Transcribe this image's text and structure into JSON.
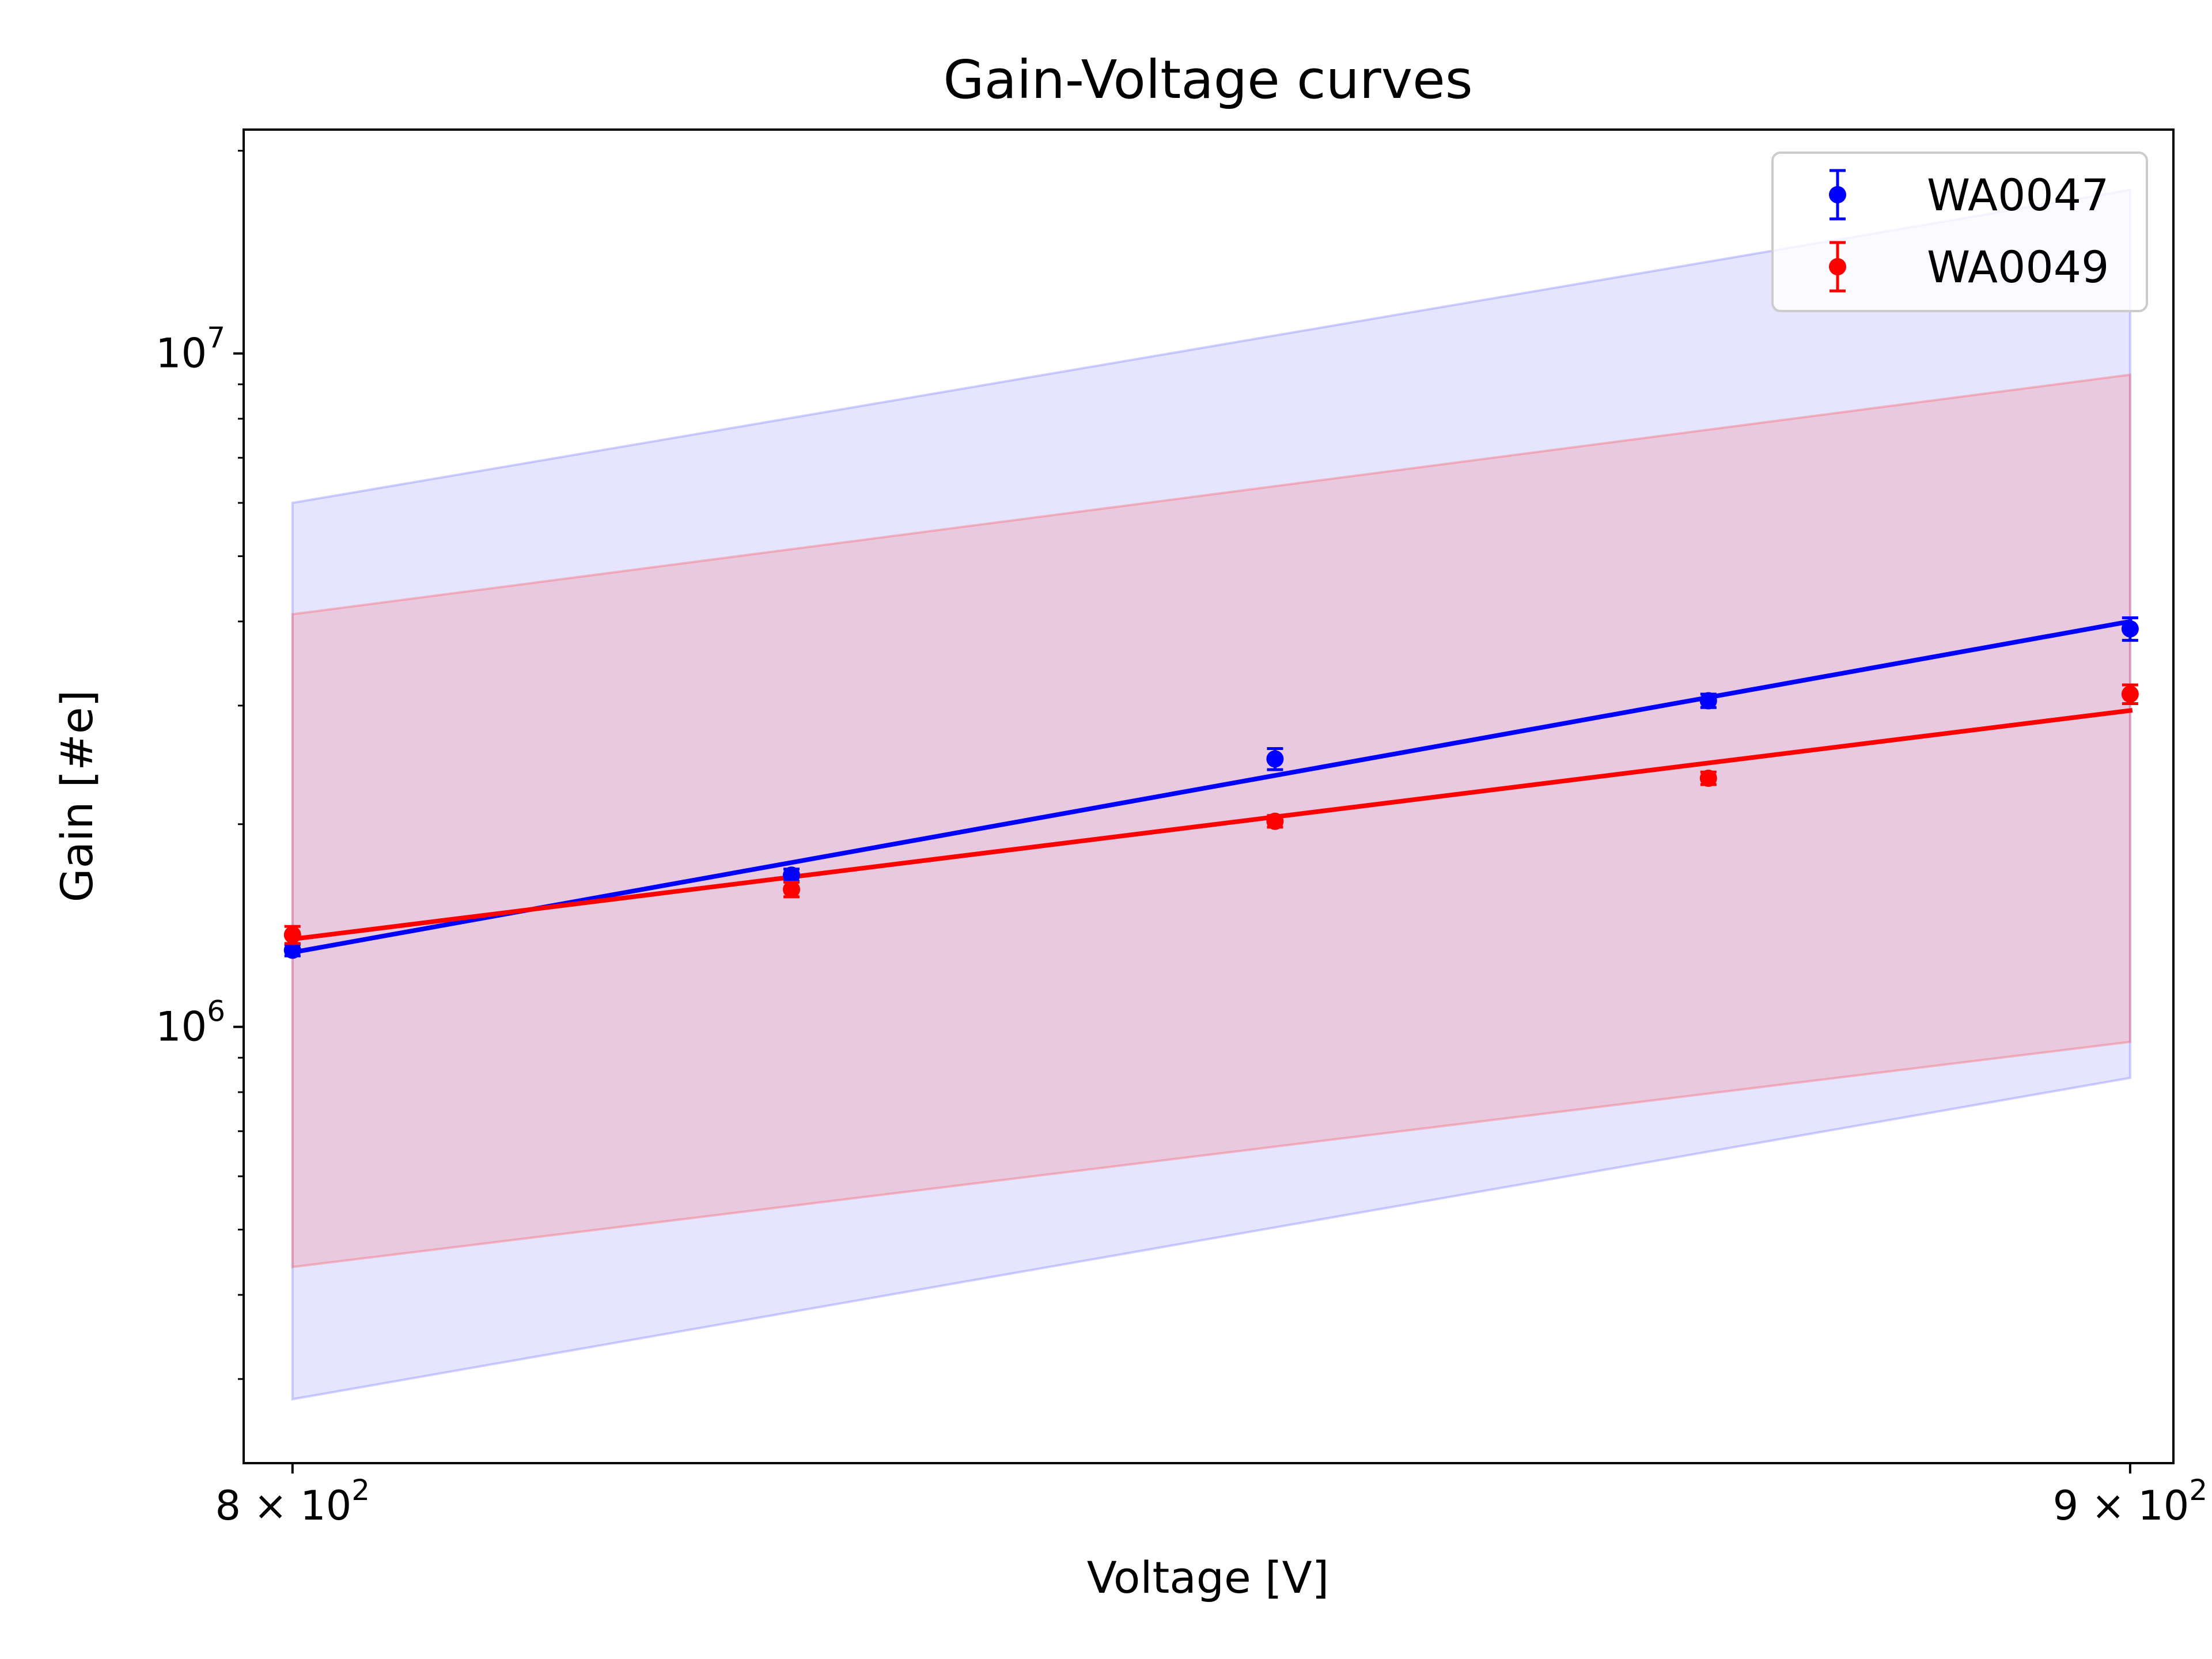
{
  "chart_data": {
    "type": "line",
    "title": "Gain-Voltage curves",
    "xlabel": "Voltage [V]",
    "ylabel": "Gain [#e]",
    "xscale": "log",
    "yscale": "log",
    "xlim": [
      797.5,
      902.5
    ],
    "ylim": [
      225000,
      21500000
    ],
    "x_ticks": [
      {
        "value": 800,
        "label_mantissa": "8",
        "label_base": "10",
        "label_exp": "2"
      },
      {
        "value": 900,
        "label_mantissa": "9",
        "label_base": "10",
        "label_exp": "2"
      }
    ],
    "y_ticks": [
      {
        "value": 1000000,
        "label_base": "10",
        "label_exp": "6"
      },
      {
        "value": 10000000,
        "label_base": "10",
        "label_exp": "7"
      }
    ],
    "grid": false,
    "legend": {
      "position": "top-right"
    },
    "series": [
      {
        "name": "WA0047",
        "color": "#0000ff",
        "points": {
          "x": [
            800,
            826,
            852,
            876,
            900
          ],
          "y": [
            1300000,
            1680000,
            2500000,
            3050000,
            3900000
          ],
          "yerr": [
            25000,
            35000,
            90000,
            70000,
            150000
          ]
        },
        "fit": {
          "x": [
            800,
            900
          ],
          "y": [
            1290000,
            4000000
          ]
        },
        "band": {
          "x": [
            800,
            900
          ],
          "upper": [
            6000000,
            17500000
          ],
          "lower": [
            280000,
            840000
          ]
        }
      },
      {
        "name": "WA0049",
        "color": "#ff0000",
        "points": {
          "x": [
            800,
            826,
            852,
            876,
            900
          ],
          "y": [
            1370000,
            1600000,
            2020000,
            2340000,
            3120000
          ],
          "yerr": [
            40000,
            40000,
            40000,
            50000,
            100000
          ]
        },
        "fit": {
          "x": [
            800,
            900
          ],
          "y": [
            1350000,
            2950000
          ]
        },
        "band": {
          "x": [
            800,
            900
          ],
          "upper": [
            4100000,
            9300000
          ],
          "lower": [
            440000,
            950000
          ]
        }
      }
    ]
  }
}
